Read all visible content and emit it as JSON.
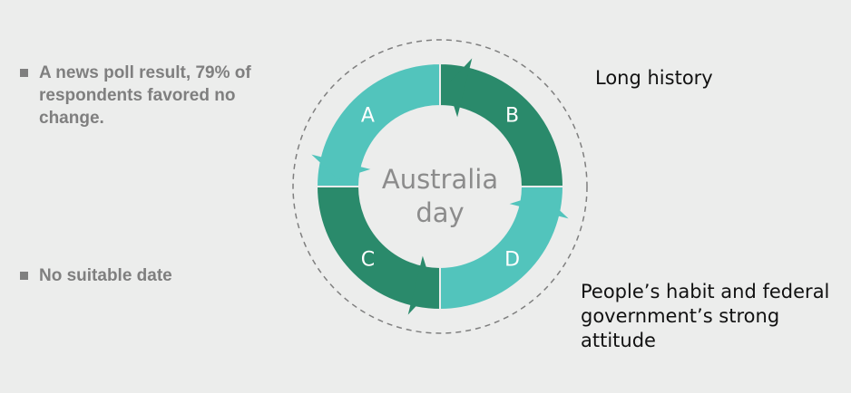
{
  "bullets": [
    "A news poll result, 79% of respondents favored no change.",
    "No suitable date"
  ],
  "diagram": {
    "center_line1": "Australia",
    "center_line2": "day",
    "segments": [
      {
        "label": "A",
        "color": "#52c4bc"
      },
      {
        "label": "B",
        "color": "#2a8a6b"
      },
      {
        "label": "C",
        "color": "#2a8a6b"
      },
      {
        "label": "D",
        "color": "#52c4bc"
      }
    ]
  },
  "callouts": {
    "b": "Long history",
    "d": "People’s habit and federal government’s strong attitude"
  },
  "colors": {
    "background": "#ecedec",
    "bullet_text": "#7f7f7f",
    "light_teal": "#52c4bc",
    "dark_green": "#2a8a6b",
    "dashed_ring": "#7f7f7f"
  }
}
